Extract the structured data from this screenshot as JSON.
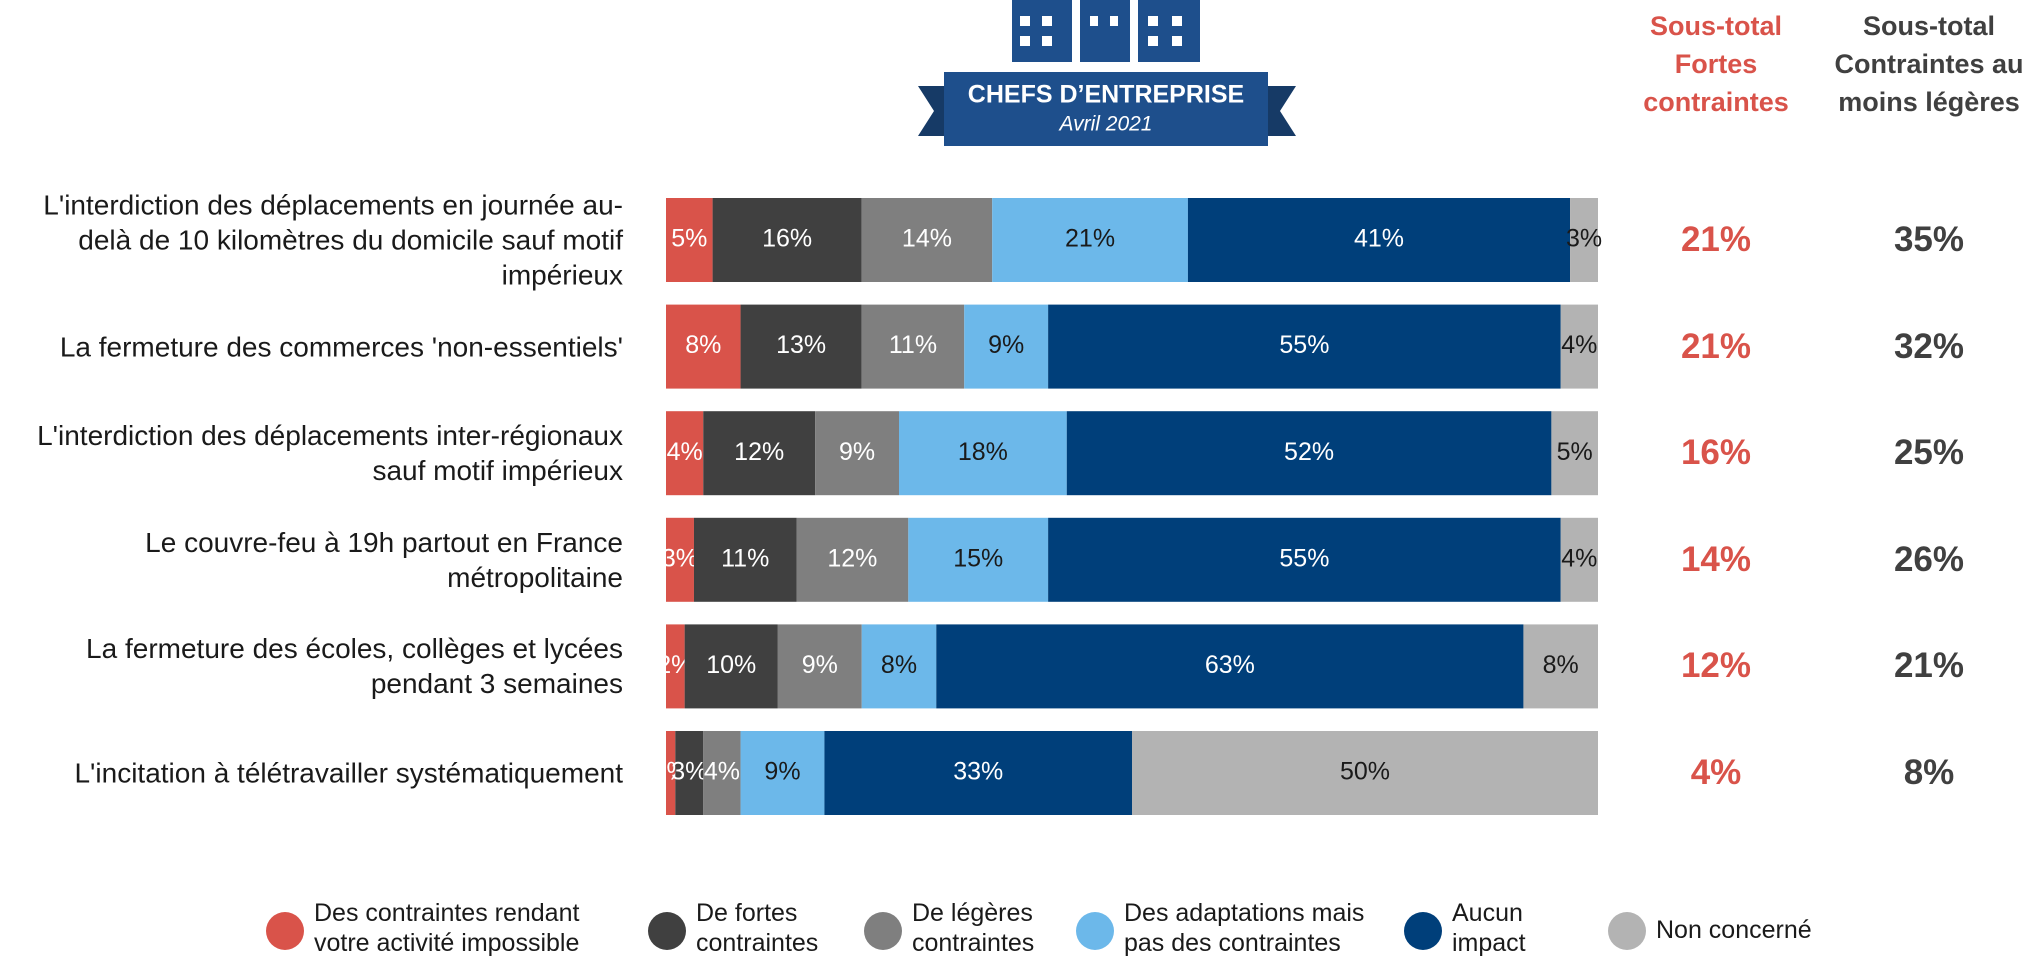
{
  "header": {
    "title": "CHEFS D’ENTREPRISE",
    "subtitle": "Avril 2021"
  },
  "chart_data": {
    "type": "stacked_bar_horizontal",
    "categories": [
      "L'interdiction des déplacements en journée au-delà de 10 kilomètres du domicile sauf motif impérieux",
      "La fermeture des commerces 'non-essentiels'",
      "L'interdiction des déplacements inter-régionaux sauf motif impérieux",
      "Le couvre-feu à 19h partout en France métropolitaine",
      "La fermeture des écoles, collèges et lycées pendant 3 semaines",
      "L'incitation à télétravailler systématiquement"
    ],
    "xlim": [
      0,
      100
    ],
    "series": [
      {
        "name": "Des contraintes rendant votre activité impossible",
        "color": "#d9534a",
        "values": [
          5,
          8,
          4,
          3,
          2,
          1
        ],
        "value_labels": [
          "5%",
          "8%",
          "4%",
          "3%",
          "2%",
          "1%"
        ]
      },
      {
        "name": "De fortes contraintes",
        "color": "#404040",
        "values": [
          16,
          13,
          12,
          11,
          10,
          3
        ],
        "value_labels": [
          "16%",
          "13%",
          "12%",
          "11%",
          "10%",
          "3%"
        ]
      },
      {
        "name": "De légères contraintes",
        "color": "#7f7f7f",
        "values": [
          14,
          11,
          9,
          12,
          9,
          4
        ],
        "value_labels": [
          "14%",
          "11%",
          "9%",
          "12%",
          "9%",
          "4%"
        ]
      },
      {
        "name": "Des adaptations mais pas des contraintes",
        "color": "#6cb8ea",
        "values": [
          21,
          9,
          18,
          15,
          8,
          9
        ],
        "value_labels": [
          "21%",
          "9%",
          "18%",
          "15%",
          "8%",
          "9%"
        ]
      },
      {
        "name": "Aucun impact",
        "color": "#003f7a",
        "values": [
          41,
          55,
          52,
          55,
          63,
          33
        ],
        "value_labels": [
          "41%",
          "55%",
          "52%",
          "55%",
          "63%",
          "33%"
        ]
      },
      {
        "name": "Non concerné",
        "color": "#b3b3b3",
        "values": [
          3,
          4,
          5,
          4,
          8,
          50
        ],
        "value_labels": [
          "3%",
          "4%",
          "5%",
          "4%",
          "8%",
          "50%"
        ]
      }
    ],
    "subtotals": [
      {
        "title_lines": [
          "Sous-total",
          "Fortes",
          "contraintes"
        ],
        "color": "#d9534a",
        "values": [
          21,
          21,
          16,
          14,
          12,
          4
        ],
        "value_labels": [
          "21%",
          "21%",
          "16%",
          "14%",
          "12%",
          "4%"
        ]
      },
      {
        "title_lines": [
          "Sous-total",
          "Contraintes au",
          "moins légères"
        ],
        "color": "#404040",
        "values": [
          35,
          32,
          25,
          26,
          21,
          8
        ],
        "value_labels": [
          "35%",
          "32%",
          "25%",
          "26%",
          "21%",
          "8%"
        ]
      }
    ]
  }
}
